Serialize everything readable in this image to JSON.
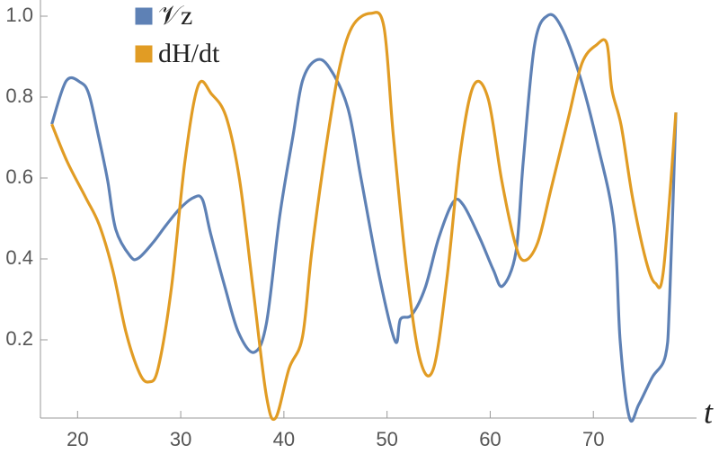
{
  "chart_data": {
    "type": "line",
    "x_label": "t",
    "xlim": [
      16.4,
      80
    ],
    "ylim": [
      0,
      1.04
    ],
    "xticks": [
      20,
      30,
      40,
      50,
      60,
      70
    ],
    "yticks": [
      0.2,
      0.4,
      0.6,
      0.8,
      {
        "value": 1,
        "label": "1.0"
      }
    ],
    "series": [
      {
        "name": "𝒱z",
        "color": "#5e81b5",
        "x": [
          17.5,
          18.9,
          20.3,
          21.1,
          22.0,
          22.9,
          23.7,
          25.1,
          25.9,
          27.3,
          28.6,
          29.9,
          31.2,
          32.1,
          32.9,
          34.3,
          35.6,
          37.1,
          38.3,
          39.6,
          40.9,
          41.8,
          43.1,
          44.4,
          46.2,
          47.5,
          49.3,
          50.8,
          51.3,
          52.4,
          53.7,
          55.0,
          56.4,
          57.4,
          59.0,
          60.3,
          61.2,
          62.5,
          63.2,
          64.3,
          65.6,
          66.9,
          68.7,
          70.4,
          72.0,
          72.6,
          73.5,
          74.4,
          75.7,
          77.0,
          77.4,
          78.0
        ],
        "values": [
          0.733,
          0.84,
          0.836,
          0.807,
          0.707,
          0.596,
          0.473,
          0.407,
          0.402,
          0.44,
          0.484,
          0.524,
          0.551,
          0.547,
          0.462,
          0.329,
          0.218,
          0.169,
          0.24,
          0.507,
          0.707,
          0.84,
          0.891,
          0.873,
          0.773,
          0.596,
          0.351,
          0.196,
          0.251,
          0.262,
          0.329,
          0.451,
          0.54,
          0.533,
          0.451,
          0.373,
          0.333,
          0.418,
          0.64,
          0.929,
          1.002,
          0.973,
          0.851,
          0.684,
          0.484,
          0.196,
          0.007,
          0.04,
          0.107,
          0.162,
          0.307,
          0.762
        ]
      },
      {
        "name": "dH/dt",
        "color": "#e19c24",
        "x": [
          17.5,
          19.0,
          20.8,
          22.1,
          23.4,
          24.7,
          26.0,
          26.9,
          27.8,
          29.1,
          30.4,
          31.7,
          33.0,
          34.4,
          35.7,
          37.0,
          38.3,
          39.2,
          40.5,
          41.8,
          42.7,
          44.0,
          45.3,
          46.6,
          48.4,
          49.7,
          50.6,
          51.9,
          53.2,
          54.5,
          55.8,
          57.1,
          58.4,
          59.8,
          61.1,
          62.4,
          63.3,
          64.6,
          65.9,
          67.6,
          68.9,
          70.3,
          71.3,
          71.8,
          72.7,
          73.8,
          75.1,
          76.0,
          76.8,
          78.0
        ],
        "values": [
          0.733,
          0.64,
          0.551,
          0.484,
          0.373,
          0.218,
          0.118,
          0.096,
          0.129,
          0.329,
          0.64,
          0.829,
          0.807,
          0.751,
          0.596,
          0.329,
          0.062,
          0.007,
          0.129,
          0.207,
          0.418,
          0.662,
          0.862,
          0.973,
          1.007,
          0.973,
          0.707,
          0.373,
          0.151,
          0.129,
          0.351,
          0.662,
          0.829,
          0.796,
          0.596,
          0.44,
          0.396,
          0.44,
          0.573,
          0.751,
          0.884,
          0.929,
          0.933,
          0.818,
          0.729,
          0.551,
          0.396,
          0.34,
          0.373,
          0.762
        ]
      }
    ]
  }
}
